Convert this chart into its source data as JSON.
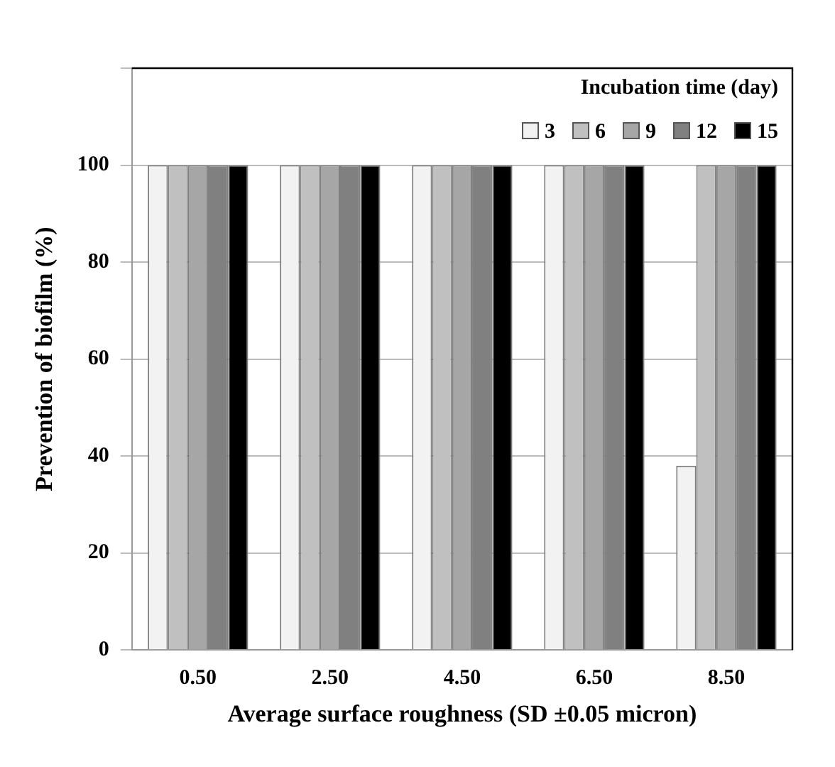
{
  "chart_data": {
    "type": "bar",
    "categories": [
      "0.50",
      "2.50",
      "4.50",
      "6.50",
      "8.50"
    ],
    "series": [
      {
        "name": "3",
        "color": "#f2f2f2",
        "values": [
          100,
          100,
          100,
          100,
          38
        ]
      },
      {
        "name": "6",
        "color": "#c0c0c0",
        "values": [
          100,
          100,
          100,
          100,
          100
        ]
      },
      {
        "name": "9",
        "color": "#a6a6a6",
        "values": [
          100,
          100,
          100,
          100,
          100
        ]
      },
      {
        "name": "12",
        "color": "#808080",
        "values": [
          100,
          100,
          100,
          100,
          100
        ]
      },
      {
        "name": "15",
        "color": "#000000",
        "values": [
          100,
          100,
          100,
          100,
          100
        ]
      }
    ],
    "xlabel": "Average surface roughness (SD ±0.05 micron)",
    "ylabel": "Prevention of biofilm (%)",
    "legend_title": "Incubation time (day)",
    "ylim": [
      0,
      120
    ],
    "yticks": [
      0,
      20,
      40,
      60,
      80,
      100,
      {
        "value": 120,
        "label": null
      }
    ],
    "grid": "y",
    "legend": "top right"
  }
}
